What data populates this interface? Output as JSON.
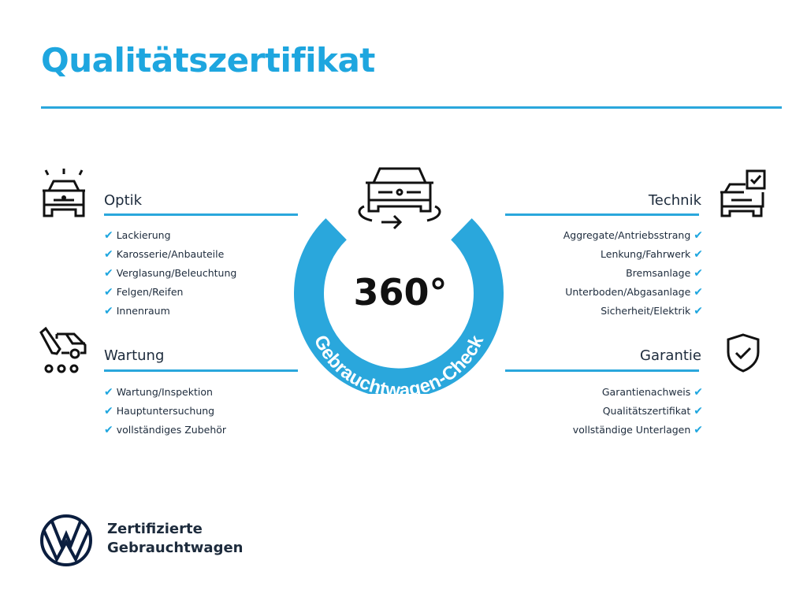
{
  "title": "Qualitätszertifikat",
  "accent_color": "#1ea6df",
  "center": {
    "big": "360°",
    "ring_text": "Gebrauchtwagen-Check",
    "icon": "car-rotate-icon"
  },
  "sections": {
    "optik": {
      "title": "Optik",
      "icon": "car-lights-icon",
      "items": [
        "Lackierung",
        "Karosserie/Anbauteile",
        "Verglasung/Beleuchtung",
        "Felgen/Reifen",
        "Innenraum"
      ]
    },
    "wartung": {
      "title": "Wartung",
      "icon": "service-truck-icon",
      "items": [
        "Wartung/Inspektion",
        "Hauptuntersuchung",
        "vollständiges Zubehör"
      ]
    },
    "technik": {
      "title": "Technik",
      "icon": "car-checklist-icon",
      "items": [
        "Aggregate/Antriebsstrang",
        "Lenkung/Fahrwerk",
        "Bremsanlage",
        "Unterboden/Abgasanlage",
        "Sicherheit/Elektrik"
      ]
    },
    "garantie": {
      "title": "Garantie",
      "icon": "shield-check-icon",
      "items": [
        "Garantienachweis",
        "Qualitätszertifikat",
        "vollständige Unterlagen"
      ]
    }
  },
  "check_mark": "✔",
  "brand": {
    "line1": "Zertifizierte",
    "line2": "Gebrauchtwagen",
    "logo": "vw-logo"
  }
}
